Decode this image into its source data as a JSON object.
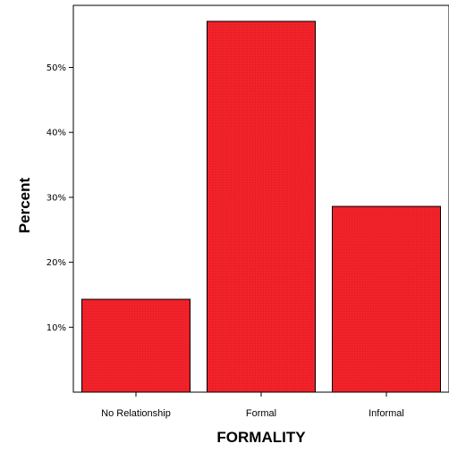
{
  "chart_data": {
    "type": "bar",
    "categories": [
      "No Relationship",
      "Formal",
      "Informal"
    ],
    "values": [
      14.3,
      57.1,
      28.6
    ],
    "xlabel": "FORMALITY",
    "ylabel": "Percent",
    "ylim": [
      0,
      60
    ],
    "yticks": [
      10,
      20,
      30,
      40,
      50
    ],
    "ytick_labels": [
      "10%",
      "20%",
      "30%",
      "40%",
      "50%"
    ],
    "bar_color": "#f0222a",
    "bar_edge_color": "#000000",
    "grid": false
  }
}
